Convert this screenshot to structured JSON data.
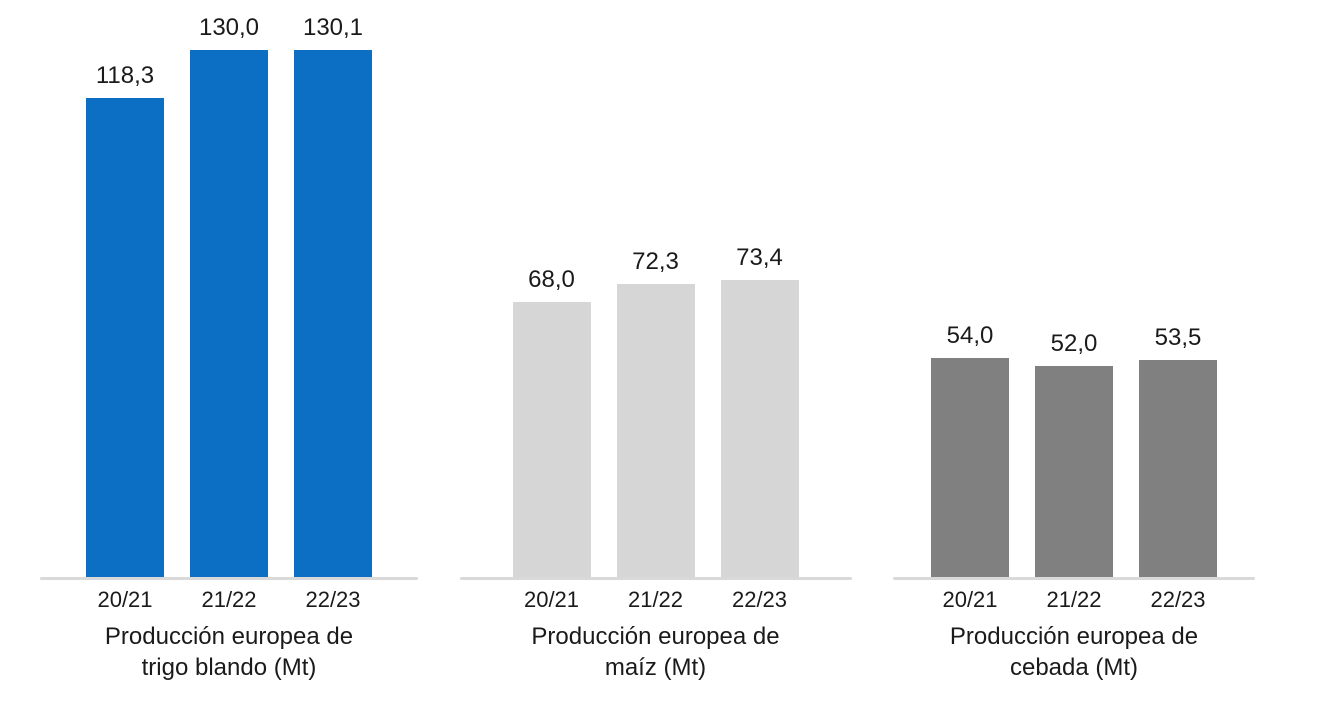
{
  "chart_data": [
    {
      "type": "bar",
      "title": "Producción europea de trigo blando (Mt)",
      "title_lines": [
        "Producción europea de",
        "trigo blando (Mt)"
      ],
      "categories": [
        "20/21",
        "21/22",
        "22/23"
      ],
      "values": [
        118.3,
        130.0,
        130.1
      ],
      "value_labels": [
        "118,3",
        "130,0",
        "130,1"
      ],
      "bar_color": "#0d6fc4",
      "xlabel": "",
      "ylabel": "",
      "ylim": [
        0,
        140
      ],
      "grid": false,
      "legend": false
    },
    {
      "type": "bar",
      "title": "Producción europea de maíz (Mt)",
      "title_lines": [
        "Producción europea de",
        "maíz (Mt)"
      ],
      "categories": [
        "20/21",
        "21/22",
        "22/23"
      ],
      "values": [
        68.0,
        72.3,
        73.4
      ],
      "value_labels": [
        "68,0",
        "72,3",
        "73,4"
      ],
      "bar_color": "#d6d6d6",
      "xlabel": "",
      "ylabel": "",
      "ylim": [
        0,
        140
      ],
      "grid": false,
      "legend": false
    },
    {
      "type": "bar",
      "title": "Producción europea de cebada (Mt)",
      "title_lines": [
        "Producción europea de",
        "cebada (Mt)"
      ],
      "categories": [
        "20/21",
        "21/22",
        "22/23"
      ],
      "values": [
        54.0,
        52.0,
        53.5
      ],
      "value_labels": [
        "54,0",
        "52,0",
        "53,5"
      ],
      "bar_color": "#808080",
      "xlabel": "",
      "ylabel": "",
      "ylim": [
        0,
        140
      ],
      "grid": false,
      "legend": false
    }
  ],
  "colors": {
    "axis_line": "#d9d9d9",
    "text": "#1a1a1a",
    "background": "#ffffff"
  }
}
